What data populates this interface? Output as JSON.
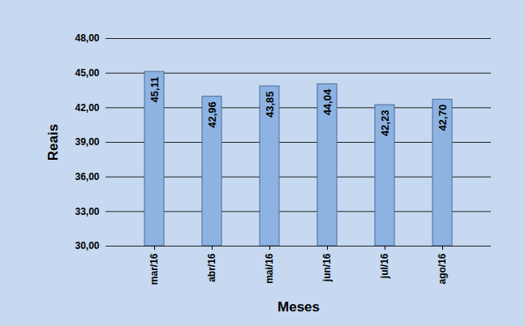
{
  "chart_data": {
    "type": "bar",
    "x_label": "Meses",
    "y_label": "Reais",
    "categories": [
      "mar/16",
      "abr/16",
      "mai/16",
      "jun/16",
      "jul/16",
      "ago/16"
    ],
    "values": [
      45.11,
      42.96,
      43.85,
      44.04,
      42.23,
      42.7
    ],
    "value_labels": [
      "45,11",
      "42,96",
      "43,85",
      "44,04",
      "42,23",
      "42,70"
    ],
    "color": "#8db3e2",
    "ylim": [
      30,
      48
    ],
    "yticks": [
      {
        "value": 30,
        "label": "30,00"
      },
      {
        "value": 33,
        "label": "33,00"
      },
      {
        "value": 36,
        "label": "36,00"
      },
      {
        "value": 39,
        "label": "39,00"
      },
      {
        "value": 42,
        "label": "42,00"
      },
      {
        "value": 45,
        "label": "45,00"
      },
      {
        "value": 48,
        "label": "48,00"
      }
    ],
    "grid": true,
    "data_labels": true
  }
}
